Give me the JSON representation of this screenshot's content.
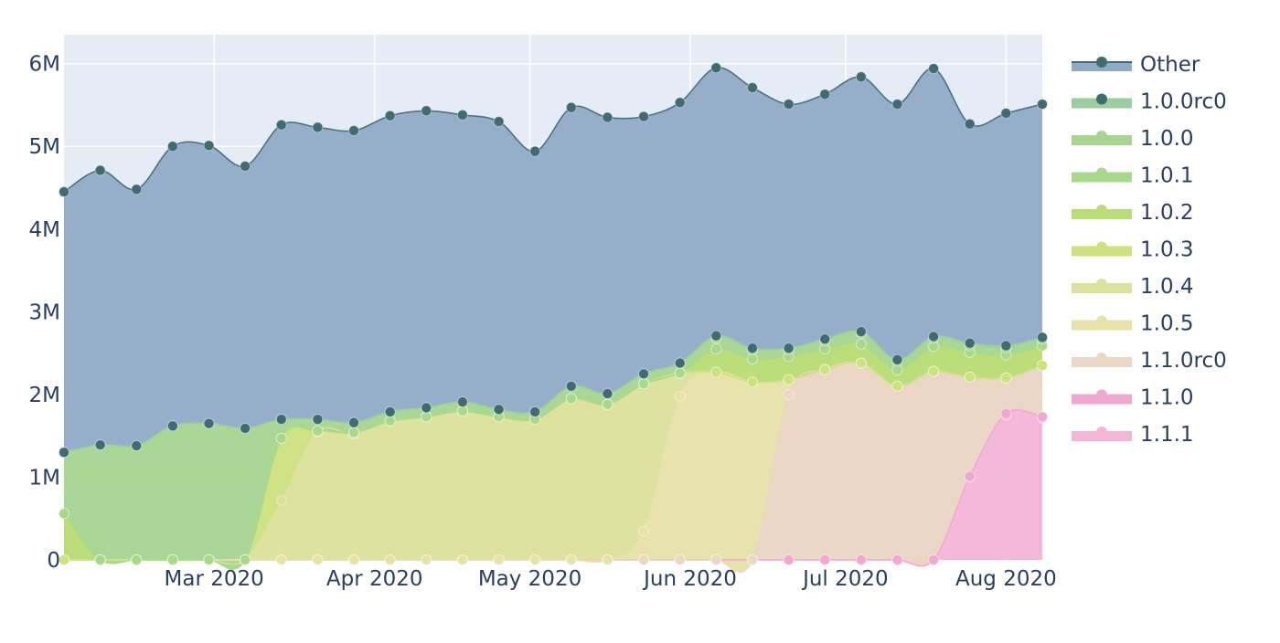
{
  "chart_data": {
    "type": "area",
    "stacked": true,
    "x": [
      "2020-02-01",
      "2020-02-08",
      "2020-02-15",
      "2020-02-22",
      "2020-02-29",
      "2020-03-07",
      "2020-03-14",
      "2020-03-21",
      "2020-03-28",
      "2020-04-04",
      "2020-04-11",
      "2020-04-18",
      "2020-04-25",
      "2020-05-02",
      "2020-05-09",
      "2020-05-16",
      "2020-05-23",
      "2020-05-30",
      "2020-06-06",
      "2020-06-13",
      "2020-06-20",
      "2020-06-27",
      "2020-07-04",
      "2020-07-11",
      "2020-07-18",
      "2020-07-25",
      "2020-08-01",
      "2020-08-08"
    ],
    "series": [
      {
        "name": "1.1.1",
        "color": "#f4b6d8",
        "values": [
          0,
          0,
          0,
          0,
          0,
          0,
          0,
          0,
          0,
          0,
          0,
          0,
          0,
          0,
          0,
          0,
          0,
          0,
          0,
          0,
          0,
          0,
          0,
          0,
          0,
          1000000,
          1750000,
          1720000
        ]
      },
      {
        "name": "1.1.0",
        "color": "#f0a8d0",
        "values": [
          0,
          0,
          0,
          0,
          0,
          0,
          0,
          0,
          0,
          0,
          0,
          0,
          0,
          0,
          0,
          0,
          0,
          0,
          0,
          0,
          0,
          0,
          0,
          0,
          0,
          10000,
          20000,
          10000
        ]
      },
      {
        "name": "1.1.0rc0",
        "color": "#ecd6c4",
        "values": [
          0,
          0,
          0,
          0,
          0,
          0,
          0,
          0,
          0,
          0,
          0,
          0,
          0,
          0,
          0,
          0,
          0,
          0,
          0,
          0,
          2000000,
          2300000,
          2380000,
          2100000,
          2280000,
          1200000,
          430000,
          620000
        ]
      },
      {
        "name": "1.0.5",
        "color": "#e8e2a8",
        "values": [
          0,
          0,
          0,
          0,
          0,
          0,
          0,
          0,
          0,
          0,
          0,
          0,
          0,
          0,
          0,
          0,
          350000,
          1980000,
          2270000,
          2150000,
          180000,
          0,
          0,
          0,
          0,
          0,
          0,
          0
        ]
      },
      {
        "name": "1.0.4",
        "color": "#dde29a",
        "values": [
          0,
          0,
          0,
          0,
          0,
          0,
          720000,
          1550000,
          1520000,
          1680000,
          1730000,
          1800000,
          1730000,
          1700000,
          1950000,
          1880000,
          1780000,
          280000,
          0,
          0,
          0,
          0,
          0,
          0,
          0,
          0,
          0,
          0
        ]
      },
      {
        "name": "1.0.3",
        "color": "#cde27e",
        "values": [
          0,
          0,
          0,
          0,
          0,
          0,
          750000,
          10000,
          20000,
          0,
          0,
          0,
          0,
          0,
          0,
          0,
          0,
          0,
          0,
          0,
          0,
          0,
          0,
          0,
          0,
          0,
          0,
          0
        ]
      },
      {
        "name": "1.0.2",
        "color": "#b8dd74",
        "values": [
          560000,
          0,
          0,
          0,
          0,
          0,
          0,
          0,
          0,
          0,
          0,
          0,
          0,
          0,
          0,
          0,
          0,
          0,
          280000,
          280000,
          280000,
          250000,
          230000,
          200000,
          300000,
          300000,
          280000,
          240000
        ]
      },
      {
        "name": "1.0.1",
        "color": "#a8d88a",
        "values": [
          0,
          0,
          0,
          0,
          0,
          0,
          0,
          0,
          0,
          0,
          0,
          0,
          0,
          0,
          0,
          0,
          0,
          0,
          0,
          0,
          0,
          0,
          0,
          0,
          0,
          0,
          0,
          0
        ]
      },
      {
        "name": "1.0.0",
        "color": "#a8d690",
        "values": [
          740000,
          1390000,
          1380000,
          1620000,
          1650000,
          1590000,
          230000,
          140000,
          120000,
          110000,
          110000,
          110000,
          90000,
          90000,
          150000,
          130000,
          120000,
          120000,
          130000,
          110000,
          80000,
          100000,
          130000,
          100000,
          100000,
          80000,
          80000,
          80000
        ]
      },
      {
        "name": "1.0.0rc0",
        "color": "#9ccda0",
        "values": [
          0,
          0,
          0,
          0,
          0,
          0,
          0,
          0,
          0,
          0,
          0,
          0,
          0,
          0,
          0,
          0,
          0,
          0,
          30000,
          20000,
          20000,
          20000,
          20000,
          20000,
          20000,
          30000,
          30000,
          20000
        ]
      },
      {
        "name": "Other",
        "color": "#91abc7",
        "values": [
          3150000,
          3320000,
          3100000,
          3380000,
          3360000,
          3170000,
          3560000,
          3530000,
          3530000,
          3580000,
          3590000,
          3470000,
          3480000,
          3150000,
          3370000,
          3340000,
          3110000,
          3150000,
          3240000,
          3150000,
          2950000,
          2960000,
          3080000,
          3090000,
          3240000,
          2650000,
          2810000,
          2820000
        ]
      }
    ],
    "legend": [
      "Other",
      "1.0.0rc0",
      "1.0.0",
      "1.0.1",
      "1.0.2",
      "1.0.3",
      "1.0.4",
      "1.0.5",
      "1.1.0rc0",
      "1.1.0",
      "1.1.1"
    ],
    "legend_position": "right",
    "xticks": [
      {
        "date": "2020-03-01",
        "label": "Mar 2020"
      },
      {
        "date": "2020-04-01",
        "label": "Apr 2020"
      },
      {
        "date": "2020-05-01",
        "label": "May 2020"
      },
      {
        "date": "2020-06-01",
        "label": "Jun 2020"
      },
      {
        "date": "2020-07-01",
        "label": "Jul 2020"
      },
      {
        "date": "2020-08-01",
        "label": "Aug 2020"
      }
    ],
    "yticks": [
      {
        "value": 0,
        "label": "0"
      },
      {
        "value": 1000000,
        "label": "1M"
      },
      {
        "value": 2000000,
        "label": "2M"
      },
      {
        "value": 3000000,
        "label": "3M"
      },
      {
        "value": 4000000,
        "label": "4M"
      },
      {
        "value": 5000000,
        "label": "5M"
      },
      {
        "value": 6000000,
        "label": "6M"
      }
    ],
    "xlim": [
      "2020-02-01",
      "2020-08-08"
    ],
    "ylim": [
      0,
      6350000
    ],
    "grid": true,
    "plot_bgcolor": "#e5ecf6",
    "marker_color": "#3f6b73",
    "title": "",
    "xlabel": "",
    "ylabel": ""
  }
}
